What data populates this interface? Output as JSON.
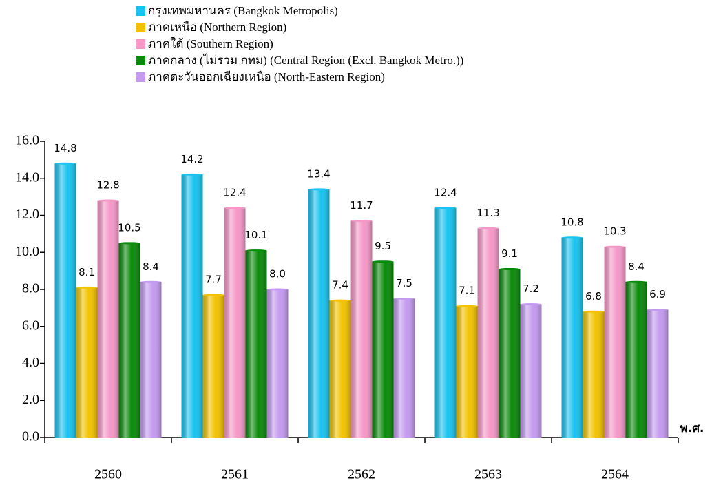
{
  "chart_data": {
    "type": "bar",
    "categories": [
      "2560",
      "2561",
      "2562",
      "2563",
      "2564"
    ],
    "x_label": "พ.ศ.",
    "series": [
      {
        "name": "กรุงเทพมหานคร (Bangkok Metropolis)",
        "color": "#19c3f0",
        "values": [
          14.8,
          14.2,
          13.4,
          12.4,
          10.8
        ],
        "value_labels": [
          "14.8",
          "14.2",
          "13.4",
          "12.4",
          "10.8"
        ]
      },
      {
        "name": "ภาคเหนือ (Northern Region)",
        "color": "#f2c200",
        "values": [
          8.1,
          7.7,
          7.4,
          7.1,
          6.8
        ],
        "value_labels": [
          "8.1",
          "7.7",
          "7.4",
          "7.1",
          "6.8"
        ]
      },
      {
        "name": "ภาคใต้ (Southern Region)",
        "color": "#f598c8",
        "values": [
          12.8,
          12.4,
          11.7,
          11.3,
          10.3
        ],
        "value_labels": [
          "12.8",
          "12.4",
          "11.7",
          "11.3",
          "10.3"
        ]
      },
      {
        "name": "ภาคกลาง (ไม่รวม กทม) (Central Region (Excl. Bangkok Metro.))",
        "color": "#0a8a0a",
        "values": [
          10.5,
          10.1,
          9.5,
          9.1,
          8.4
        ],
        "value_labels": [
          "10.5",
          "10.1",
          "9.5",
          "9.1",
          "8.4"
        ]
      },
      {
        "name": "ภาคตะวันออกเฉียงเหนือ (North-Eastern Region)",
        "color": "#c49af0",
        "values": [
          8.4,
          8.0,
          7.5,
          7.2,
          6.9
        ],
        "value_labels": [
          "8.4",
          "8.0",
          "7.5",
          "7.2",
          "6.9"
        ]
      }
    ],
    "ylim": [
      0,
      16
    ],
    "yticks": [
      {
        "value": 0,
        "label": "0.0"
      },
      {
        "value": 2,
        "label": "2.0"
      },
      {
        "value": 4,
        "label": "4.0"
      },
      {
        "value": 6,
        "label": "6.0"
      },
      {
        "value": 8,
        "label": "8.0"
      },
      {
        "value": 10,
        "label": "10.0"
      },
      {
        "value": 12,
        "label": "12.0"
      },
      {
        "value": 14,
        "label": "14.0"
      },
      {
        "value": 16,
        "label": "16.0"
      }
    ],
    "grid": false,
    "legend": "top"
  }
}
